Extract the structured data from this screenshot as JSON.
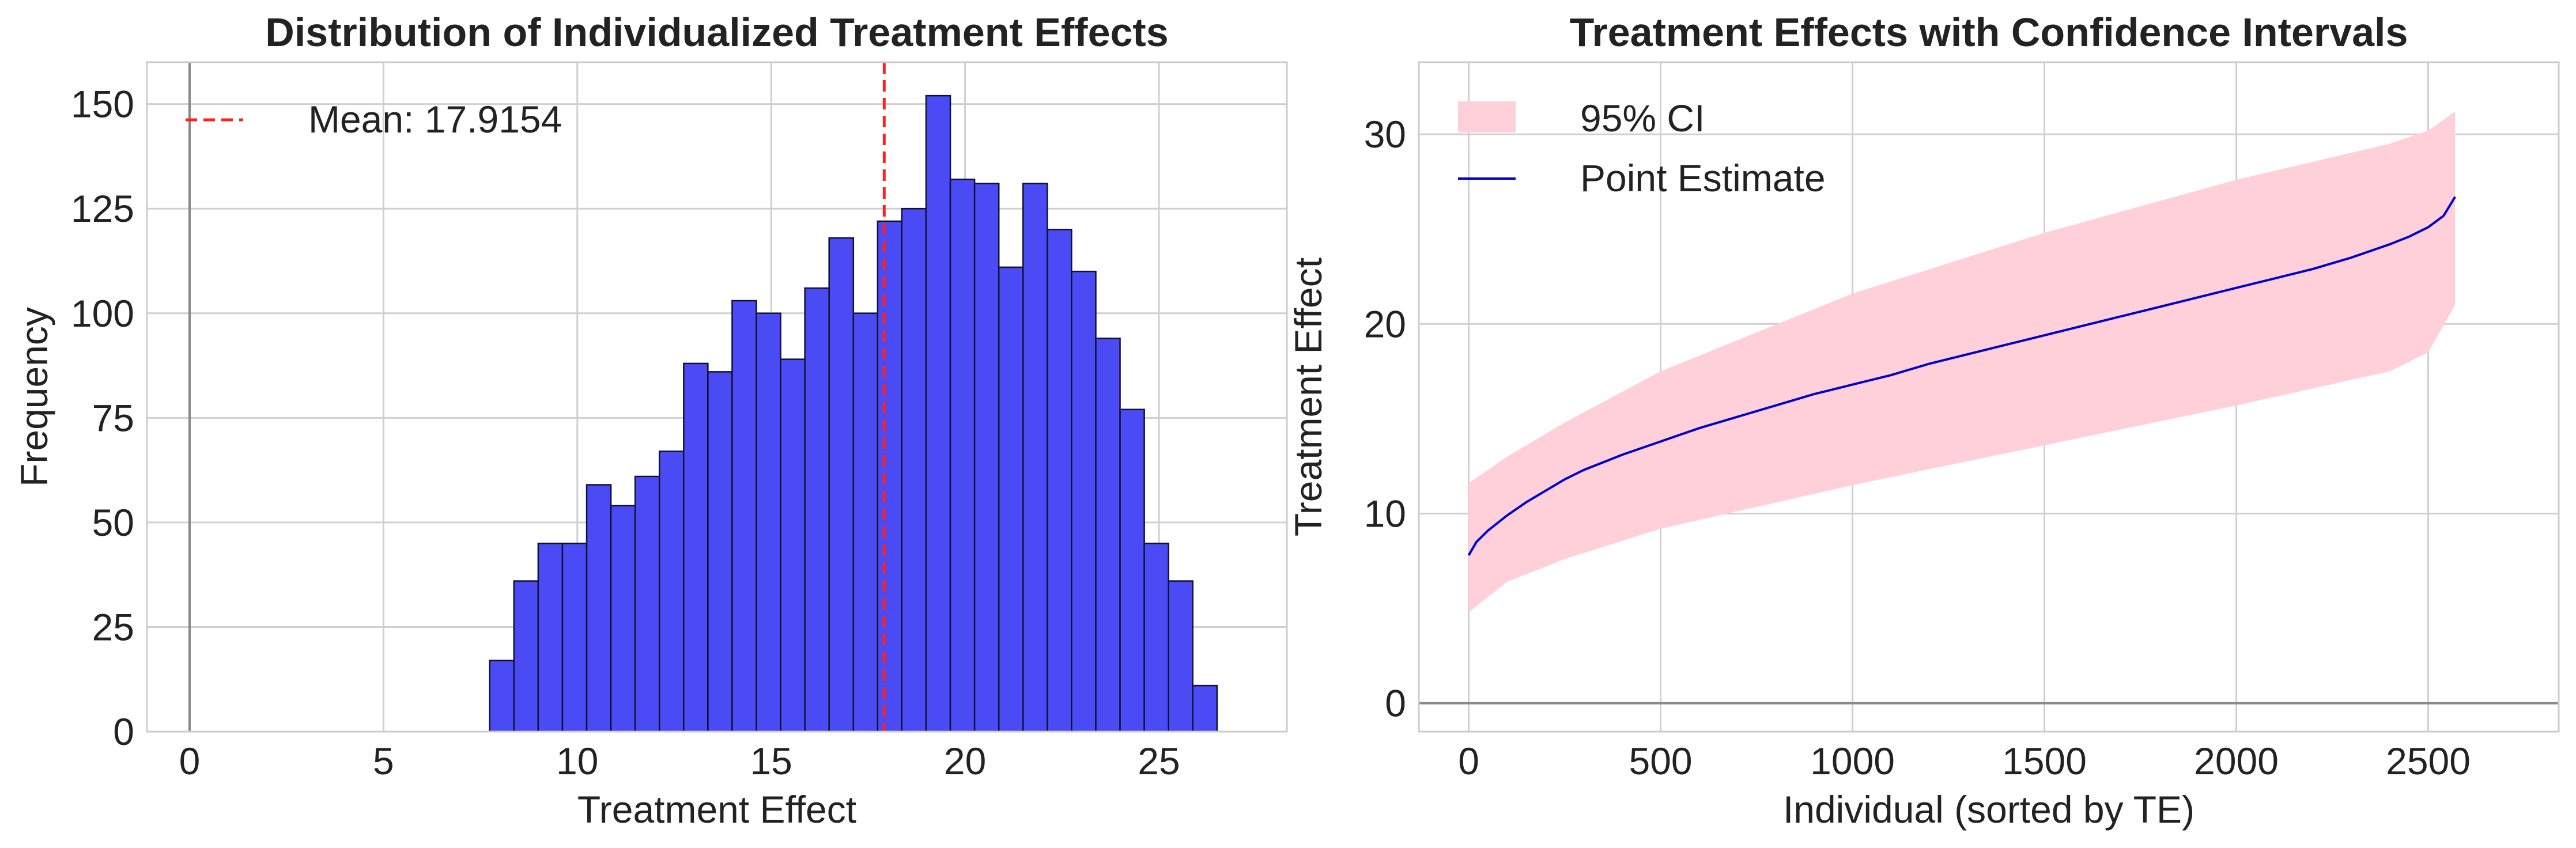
{
  "colors": {
    "bar_fill": "#4b4bf5",
    "bar_edge": "#111133",
    "mean_line": "#ff2020",
    "ci_band": "#ffd0da",
    "point_line": "#0000cc",
    "grid": "#d0d0d0",
    "zero_line": "#888888",
    "spine": "#cccccc",
    "text": "#222222"
  },
  "chart_data": [
    {
      "type": "bar",
      "title": "Distribution of Individualized Treatment Effects",
      "xlabel": "Treatment Effect",
      "ylabel": "Frequency",
      "xlim": [
        -1.1,
        28.3
      ],
      "ylim": [
        0,
        160
      ],
      "xticks": [
        0,
        5,
        10,
        15,
        20,
        25
      ],
      "yticks": [
        0,
        25,
        50,
        75,
        100,
        125,
        150
      ],
      "grid": true,
      "legend_position": "top-left",
      "bin_start": 7.74,
      "bin_width": 0.6253,
      "counts": [
        17,
        36,
        45,
        45,
        59,
        54,
        61,
        67,
        88,
        86,
        103,
        100,
        89,
        106,
        118,
        100,
        122,
        125,
        152,
        132,
        131,
        111,
        131,
        120,
        110,
        94,
        77,
        45,
        36,
        11
      ],
      "mean": 17.9154,
      "mean_label": "Mean: 17.9154",
      "zero_line": 0
    },
    {
      "type": "line",
      "title": "Treatment Effects with Confidence Intervals",
      "xlabel": "Individual (sorted by TE)",
      "ylabel": "Treatment Effect",
      "xlim": [
        -130,
        2840
      ],
      "ylim": [
        -1.5,
        33.8
      ],
      "xticks": [
        0,
        500,
        1000,
        1500,
        2000,
        2500
      ],
      "yticks": [
        0,
        10,
        20,
        30
      ],
      "grid": true,
      "legend_position": "top-left",
      "series": [
        {
          "name": "Point Estimate",
          "x": [
            0,
            20,
            50,
            100,
            150,
            200,
            250,
            300,
            400,
            500,
            600,
            700,
            800,
            900,
            1000,
            1100,
            1200,
            1300,
            1400,
            1500,
            1600,
            1700,
            1800,
            1900,
            2000,
            2100,
            2200,
            2300,
            2400,
            2450,
            2500,
            2540,
            2570
          ],
          "y": [
            7.8,
            8.5,
            9.1,
            9.9,
            10.6,
            11.2,
            11.8,
            12.3,
            13.1,
            13.8,
            14.5,
            15.1,
            15.7,
            16.3,
            16.8,
            17.3,
            17.9,
            18.4,
            18.9,
            19.4,
            19.9,
            20.4,
            20.9,
            21.4,
            21.9,
            22.4,
            22.9,
            23.5,
            24.2,
            24.6,
            25.1,
            25.7,
            26.7
          ]
        },
        {
          "name": "95% CI",
          "x": [
            0,
            100,
            250,
            500,
            1000,
            1500,
            2000,
            2400,
            2500,
            2570
          ],
          "lower": [
            4.8,
            6.4,
            7.6,
            9.2,
            11.5,
            13.6,
            15.7,
            17.5,
            18.5,
            21.0
          ],
          "upper": [
            11.6,
            13.0,
            14.8,
            17.5,
            21.6,
            24.8,
            27.6,
            29.5,
            30.2,
            31.2
          ]
        }
      ],
      "zero_line": 0
    }
  ]
}
